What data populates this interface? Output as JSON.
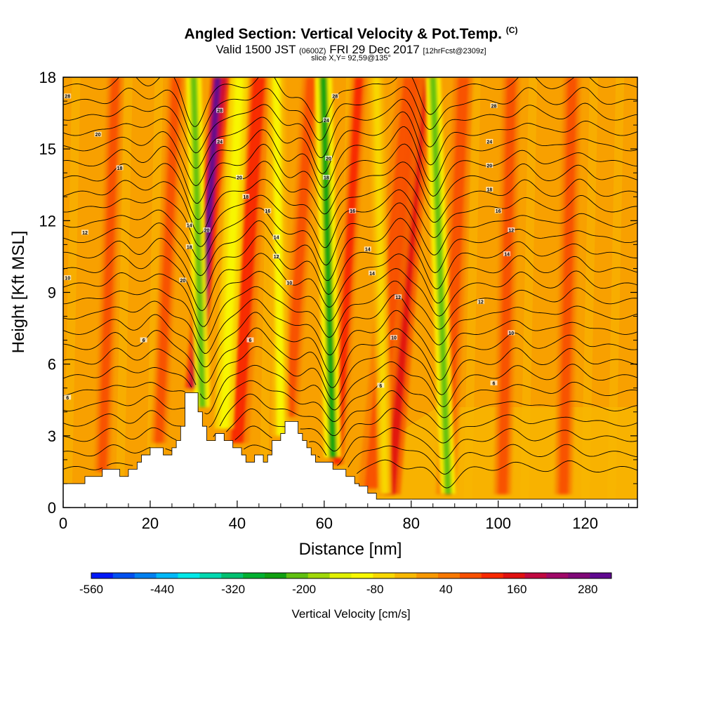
{
  "header": {
    "title": "Angled Section: Vertical Velocity & Pot.Temp.",
    "title_suffix": "(C)",
    "subtitle_valid": "Valid 1500 JST",
    "subtitle_z": "(0600Z)",
    "subtitle_date": "FRI 29 Dec 2017",
    "subtitle_fcst": "[12hrFcst@2309z]",
    "slice": "slice X,Y= 92,59@135°"
  },
  "chart_data": {
    "type": "heatmap",
    "xlabel": "Distance [nm]",
    "ylabel": "Height [Kft MSL]",
    "xlim": [
      0,
      132
    ],
    "ylim": [
      0,
      18
    ],
    "x_ticks": [
      "0",
      "20",
      "40",
      "60",
      "80",
      "100",
      "120"
    ],
    "y_ticks": [
      "0",
      "3",
      "6",
      "9",
      "12",
      "15",
      "18"
    ],
    "colorbar": {
      "label": "Vertical Velocity [cm/s]",
      "tick_labels": [
        "-560",
        "-440",
        "-320",
        "-200",
        "-80",
        "40",
        "160",
        "280"
      ],
      "range": [
        -560,
        320
      ],
      "colors": [
        "#0018f8",
        "#0050f0",
        "#0080f0",
        "#00b8f8",
        "#00e8e8",
        "#00d8b0",
        "#00c070",
        "#00b030",
        "#10a010",
        "#60c010",
        "#a0d808",
        "#e0f000",
        "#f8f800",
        "#f8d800",
        "#f8b800",
        "#f89800",
        "#f87800",
        "#f85000",
        "#f82800",
        "#e01010",
        "#c00840",
        "#a00868",
        "#800878",
        "#600890"
      ]
    },
    "terrain_kft": [
      [
        0,
        1.0
      ],
      [
        1,
        1.0
      ],
      [
        2,
        1.0
      ],
      [
        3,
        1.0
      ],
      [
        4,
        1.0
      ],
      [
        5,
        1.3
      ],
      [
        6,
        1.3
      ],
      [
        7,
        1.3
      ],
      [
        8,
        1.3
      ],
      [
        9,
        1.6
      ],
      [
        10,
        1.6
      ],
      [
        11,
        1.6
      ],
      [
        12,
        1.6
      ],
      [
        13,
        1.3
      ],
      [
        14,
        1.3
      ],
      [
        15,
        1.6
      ],
      [
        16,
        1.6
      ],
      [
        17,
        1.9
      ],
      [
        18,
        2.2
      ],
      [
        19,
        2.2
      ],
      [
        20,
        2.5
      ],
      [
        21,
        2.5
      ],
      [
        22,
        2.5
      ],
      [
        23,
        2.2
      ],
      [
        24,
        2.2
      ],
      [
        25,
        2.5
      ],
      [
        26,
        2.8
      ],
      [
        27,
        3.4
      ],
      [
        28,
        4.8
      ],
      [
        29,
        4.8
      ],
      [
        30,
        4.8
      ],
      [
        31,
        4.0
      ],
      [
        32,
        3.4
      ],
      [
        33,
        2.8
      ],
      [
        34,
        2.8
      ],
      [
        35,
        3.1
      ],
      [
        36,
        3.1
      ],
      [
        37,
        2.8
      ],
      [
        38,
        2.8
      ],
      [
        39,
        2.5
      ],
      [
        40,
        2.5
      ],
      [
        41,
        2.2
      ],
      [
        42,
        1.9
      ],
      [
        43,
        1.9
      ],
      [
        44,
        2.2
      ],
      [
        45,
        2.2
      ],
      [
        46,
        1.9
      ],
      [
        47,
        2.2
      ],
      [
        48,
        2.8
      ],
      [
        49,
        2.8
      ],
      [
        50,
        3.1
      ],
      [
        51,
        3.6
      ],
      [
        52,
        3.6
      ],
      [
        53,
        3.6
      ],
      [
        54,
        3.1
      ],
      [
        55,
        2.8
      ],
      [
        56,
        2.5
      ],
      [
        57,
        2.2
      ],
      [
        58,
        1.9
      ],
      [
        59,
        1.9
      ],
      [
        60,
        1.9
      ],
      [
        61,
        1.9
      ],
      [
        62,
        1.6
      ],
      [
        63,
        1.6
      ],
      [
        64,
        1.6
      ],
      [
        65,
        1.3
      ],
      [
        66,
        1.3
      ],
      [
        67,
        1.0
      ],
      [
        68,
        0.9
      ],
      [
        69,
        0.9
      ],
      [
        70,
        0.6
      ],
      [
        71,
        0.6
      ],
      [
        72,
        0.35
      ],
      [
        132,
        0.35
      ]
    ],
    "updraft_columns": [
      {
        "top_x": 36.5,
        "bottom_x": 30,
        "width": 2.2,
        "w": 200
      },
      {
        "top_x": 35.5,
        "bottom_x": 31,
        "width": 1.6,
        "w": 300
      },
      {
        "top_x": 45,
        "bottom_x": 40,
        "width": 3.0,
        "w": 120
      },
      {
        "top_x": 57,
        "bottom_x": 52,
        "width": 2.2,
        "w": 80
      },
      {
        "top_x": 82.5,
        "bottom_x": 75,
        "width": 2.8,
        "w": 160
      },
      {
        "top_x": 80,
        "bottom_x": 71,
        "width": 3.5,
        "w": 90
      },
      {
        "top_x": 26,
        "bottom_x": 22,
        "width": 2.0,
        "w": 90
      },
      {
        "top_x": 68,
        "bottom_x": 63,
        "width": 2.0,
        "w": 100
      },
      {
        "top_x": 92,
        "bottom_x": 88,
        "width": 2.5,
        "w": 80
      },
      {
        "top_x": 12,
        "bottom_x": 9,
        "width": 2.0,
        "w": 70
      },
      {
        "top_x": 103,
        "bottom_x": 101,
        "width": 2.2,
        "w": 70
      },
      {
        "top_x": 117,
        "bottom_x": 115,
        "width": 2.2,
        "w": 70
      }
    ],
    "downdraft_columns": [
      {
        "top_x": 30,
        "bottom_x": 32,
        "width": 1.6,
        "w": -230
      },
      {
        "top_x": 40.5,
        "bottom_x": 37,
        "width": 2.0,
        "w": -110
      },
      {
        "top_x": 59.8,
        "bottom_x": 62,
        "width": 1.8,
        "w": -240
      },
      {
        "top_x": 85,
        "bottom_x": 88.5,
        "width": 1.6,
        "w": -200
      },
      {
        "top_x": 49,
        "bottom_x": 50,
        "width": 1.8,
        "w": -90
      },
      {
        "top_x": 72,
        "bottom_x": 74,
        "width": 1.5,
        "w": -80
      }
    ],
    "isentrope_labels": [
      {
        "x": 1,
        "y": 17.2,
        "text": "28"
      },
      {
        "x": 8,
        "y": 15.6,
        "text": "20"
      },
      {
        "x": 13,
        "y": 14.2,
        "text": "18"
      },
      {
        "x": 5,
        "y": 11.5,
        "text": "12"
      },
      {
        "x": 1,
        "y": 9.6,
        "text": "10"
      },
      {
        "x": 18.5,
        "y": 7.0,
        "text": "6"
      },
      {
        "x": 1,
        "y": 4.6,
        "text": "6"
      },
      {
        "x": 36,
        "y": 16.6,
        "text": "28"
      },
      {
        "x": 36,
        "y": 15.3,
        "text": "24"
      },
      {
        "x": 40.5,
        "y": 13.8,
        "text": "20"
      },
      {
        "x": 42,
        "y": 13.0,
        "text": "18"
      },
      {
        "x": 47,
        "y": 12.4,
        "text": "16"
      },
      {
        "x": 49,
        "y": 11.3,
        "text": "14"
      },
      {
        "x": 49,
        "y": 10.5,
        "text": "12"
      },
      {
        "x": 52,
        "y": 9.4,
        "text": "10"
      },
      {
        "x": 43,
        "y": 7.0,
        "text": "6"
      },
      {
        "x": 29,
        "y": 11.8,
        "text": "14"
      },
      {
        "x": 33,
        "y": 11.6,
        "text": "20"
      },
      {
        "x": 29,
        "y": 10.9,
        "text": "18"
      },
      {
        "x": 27.5,
        "y": 9.5,
        "text": "20"
      },
      {
        "x": 62.5,
        "y": 17.2,
        "text": "28"
      },
      {
        "x": 60.5,
        "y": 16.2,
        "text": "24"
      },
      {
        "x": 61,
        "y": 14.6,
        "text": "20"
      },
      {
        "x": 60.5,
        "y": 13.8,
        "text": "18"
      },
      {
        "x": 66.5,
        "y": 12.4,
        "text": "16"
      },
      {
        "x": 70,
        "y": 10.8,
        "text": "14"
      },
      {
        "x": 71,
        "y": 9.8,
        "text": "14"
      },
      {
        "x": 77,
        "y": 8.8,
        "text": "12"
      },
      {
        "x": 76,
        "y": 7.1,
        "text": "10"
      },
      {
        "x": 73,
        "y": 5.1,
        "text": "6"
      },
      {
        "x": 99,
        "y": 16.8,
        "text": "28"
      },
      {
        "x": 98,
        "y": 15.3,
        "text": "24"
      },
      {
        "x": 98,
        "y": 14.3,
        "text": "20"
      },
      {
        "x": 98,
        "y": 13.3,
        "text": "18"
      },
      {
        "x": 100,
        "y": 12.4,
        "text": "16"
      },
      {
        "x": 103,
        "y": 11.6,
        "text": "12"
      },
      {
        "x": 102,
        "y": 10.6,
        "text": "14"
      },
      {
        "x": 96,
        "y": 8.6,
        "text": "12"
      },
      {
        "x": 103,
        "y": 7.3,
        "text": "10"
      },
      {
        "x": 99,
        "y": 5.2,
        "text": "6"
      }
    ]
  }
}
